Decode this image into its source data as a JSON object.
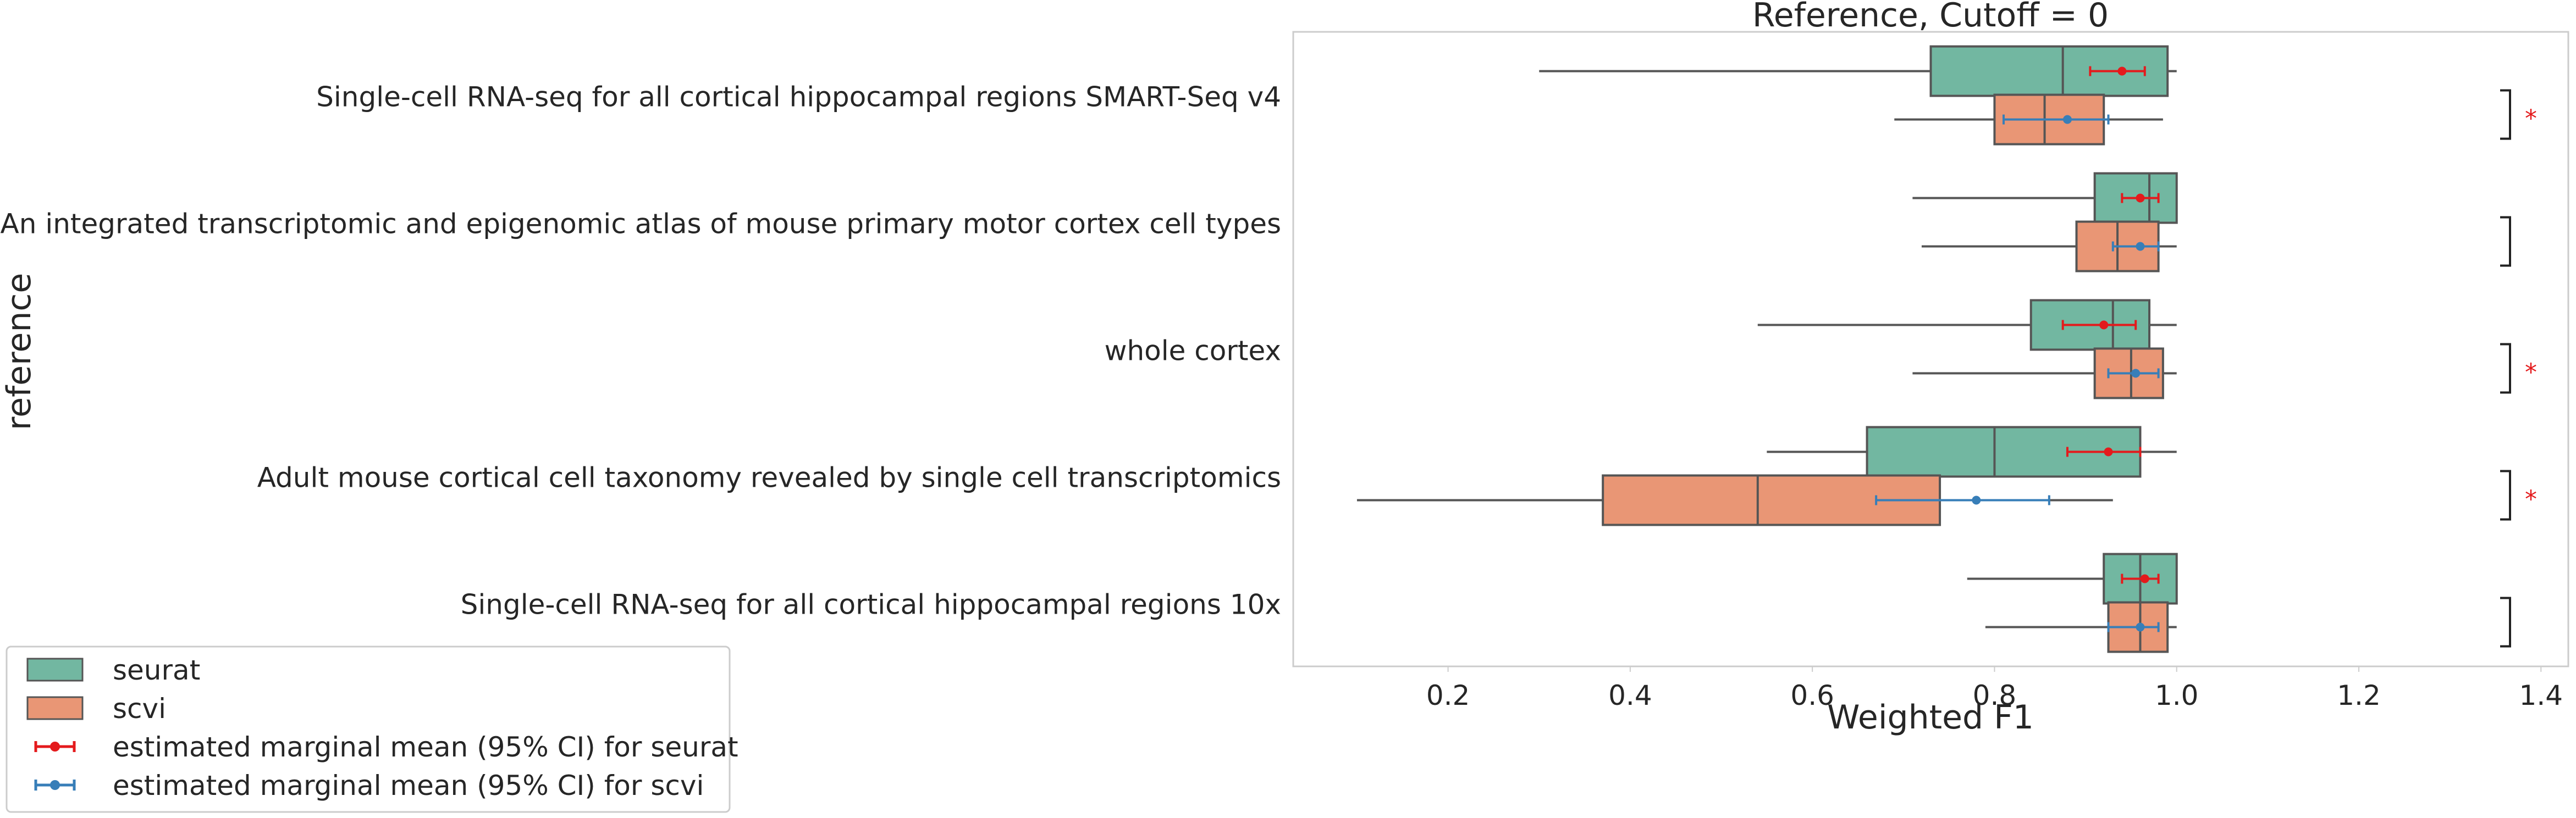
{
  "chart_data": {
    "type": "box",
    "title": "Reference, Cutoff = 0",
    "xlabel": "Weighted F1",
    "ylabel": "reference",
    "xlim": [
      0.03,
      1.43
    ],
    "xticks": [
      0.2,
      0.4,
      0.6,
      0.8,
      1.0,
      1.2,
      1.4
    ],
    "xtick_labels": [
      "0.2",
      "0.4",
      "0.6",
      "0.8",
      "1.0",
      "1.2",
      "1.4"
    ],
    "grid": false,
    "legend_position": "bottom-left, outside axes",
    "categories": [
      "Single-cell RNA-seq for all cortical  hippocampal regions SMART-Seq v4",
      "An integrated transcriptomic and epigenomic atlas of mouse primary motor cortex cell types",
      "whole cortex",
      "Adult mouse cortical cell taxonomy revealed by single cell transcriptomics",
      "Single-cell RNA-seq for all cortical  hippocampal regions 10x"
    ],
    "series": [
      {
        "name": "seurat",
        "color": "#72b7a1",
        "boxes": [
          {
            "whisker_low": 0.3,
            "q1": 0.73,
            "median": 0.875,
            "q3": 0.99,
            "whisker_high": 1.0
          },
          {
            "whisker_low": 0.71,
            "q1": 0.91,
            "median": 0.97,
            "q3": 1.0,
            "whisker_high": 1.0
          },
          {
            "whisker_low": 0.54,
            "q1": 0.84,
            "median": 0.93,
            "q3": 0.97,
            "whisker_high": 1.0
          },
          {
            "whisker_low": 0.55,
            "q1": 0.66,
            "median": 0.8,
            "q3": 0.96,
            "whisker_high": 1.0
          },
          {
            "whisker_low": 0.77,
            "q1": 0.92,
            "median": 0.96,
            "q3": 1.0,
            "whisker_high": 1.0
          }
        ]
      },
      {
        "name": "scvi",
        "color": "#e99675",
        "boxes": [
          {
            "whisker_low": 0.69,
            "q1": 0.8,
            "median": 0.855,
            "q3": 0.92,
            "whisker_high": 0.985
          },
          {
            "whisker_low": 0.72,
            "q1": 0.89,
            "median": 0.935,
            "q3": 0.98,
            "whisker_high": 1.0
          },
          {
            "whisker_low": 0.71,
            "q1": 0.91,
            "median": 0.95,
            "q3": 0.985,
            "whisker_high": 1.0
          },
          {
            "whisker_low": 0.1,
            "q1": 0.37,
            "median": 0.54,
            "q3": 0.74,
            "whisker_high": 0.93
          },
          {
            "whisker_low": 0.79,
            "q1": 0.925,
            "median": 0.96,
            "q3": 0.99,
            "whisker_high": 1.0
          }
        ]
      }
    ],
    "marginal_means": [
      {
        "name": "estimated marginal mean (95% CI) for seurat",
        "color": "#e41a1c",
        "points": [
          {
            "mean": 0.94,
            "low": 0.905,
            "high": 0.965
          },
          {
            "mean": 0.96,
            "low": 0.94,
            "high": 0.98
          },
          {
            "mean": 0.92,
            "low": 0.875,
            "high": 0.955
          },
          {
            "mean": 0.925,
            "low": 0.88,
            "high": 0.96
          },
          {
            "mean": 0.965,
            "low": 0.94,
            "high": 0.98
          }
        ]
      },
      {
        "name": "estimated marginal mean (95% CI) for scvi",
        "color": "#377eb8",
        "points": [
          {
            "mean": 0.88,
            "low": 0.81,
            "high": 0.925
          },
          {
            "mean": 0.96,
            "low": 0.93,
            "high": 0.98
          },
          {
            "mean": 0.955,
            "low": 0.925,
            "high": 0.98
          },
          {
            "mean": 0.78,
            "low": 0.67,
            "high": 0.86
          },
          {
            "mean": 0.96,
            "low": 0.925,
            "high": 0.98
          }
        ]
      }
    ],
    "significance": {
      "marker": "*",
      "color": "#e41a1c",
      "significant": [
        true,
        false,
        true,
        true,
        false
      ]
    },
    "legend": [
      {
        "label": "seurat",
        "kind": "patch",
        "color": "#72b7a1"
      },
      {
        "label": "scvi",
        "kind": "patch",
        "color": "#e99675"
      },
      {
        "label": "estimated marginal mean (95% CI) for seurat",
        "kind": "errorbar",
        "color": "#e41a1c"
      },
      {
        "label": "estimated marginal mean (95% CI) for scvi",
        "kind": "errorbar",
        "color": "#377eb8"
      }
    ]
  }
}
